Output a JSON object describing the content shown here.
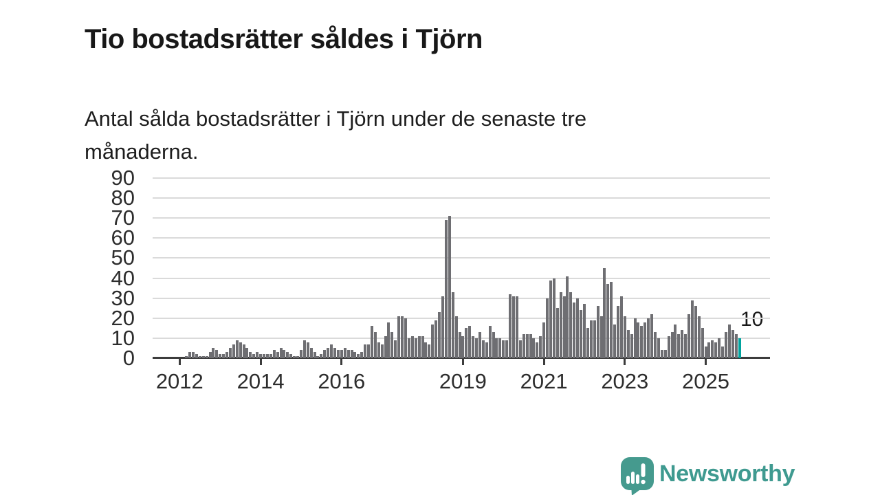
{
  "title": "Tio bostadsrätter såldes i Tjörn",
  "subtitle": "Antal sålda bostadsrätter i Tjörn under de senaste tre månaderna.",
  "chart_data": {
    "type": "bar",
    "title": "Tio bostadsrätter såldes i Tjörn",
    "subtitle": "Antal sålda bostadsrätter i Tjörn under de senaste tre månaderna.",
    "xlabel": "",
    "ylabel": "",
    "x_unit": "month",
    "x_start": "2011-06",
    "ylim": [
      0,
      90
    ],
    "grid": true,
    "yticks": [
      0,
      10,
      20,
      30,
      40,
      50,
      60,
      70,
      80,
      90
    ],
    "xticks": [
      {
        "label": "2012",
        "month_index": 7
      },
      {
        "label": "2014",
        "month_index": 31
      },
      {
        "label": "2016",
        "month_index": 55
      },
      {
        "label": "2019",
        "month_index": 91
      },
      {
        "label": "2021",
        "month_index": 115
      },
      {
        "label": "2023",
        "month_index": 139
      },
      {
        "label": "2025",
        "month_index": 163
      }
    ],
    "values": [
      0,
      0,
      0,
      0,
      0,
      0,
      0,
      0,
      0,
      1,
      3,
      3,
      2,
      1,
      1,
      1,
      3,
      5,
      4,
      2,
      2,
      3,
      5,
      7,
      9,
      8,
      7,
      5,
      3,
      2,
      3,
      2,
      2,
      2,
      2,
      4,
      3,
      5,
      4,
      3,
      2,
      1,
      1,
      4,
      9,
      8,
      5,
      3,
      1,
      2,
      4,
      5,
      7,
      5,
      4,
      4,
      5,
      4,
      4,
      3,
      2,
      3,
      7,
      7,
      16,
      13,
      8,
      7,
      11,
      18,
      13,
      9,
      21,
      21,
      20,
      10,
      11,
      10,
      11,
      11,
      8,
      7,
      17,
      19,
      23,
      31,
      69,
      71,
      33,
      21,
      13,
      11,
      15,
      16,
      11,
      10,
      13,
      9,
      8,
      16,
      13,
      10,
      10,
      9,
      9,
      32,
      31,
      31,
      9,
      12,
      12,
      12,
      10,
      8,
      11,
      18,
      30,
      39,
      40,
      25,
      33,
      31,
      41,
      33,
      28,
      30,
      24,
      27,
      15,
      19,
      19,
      26,
      21,
      45,
      37,
      38,
      17,
      26,
      31,
      21,
      14,
      12,
      20,
      18,
      16,
      18,
      20,
      22,
      13,
      10,
      4,
      4,
      11,
      13,
      17,
      12,
      14,
      12,
      22,
      29,
      26,
      21,
      15,
      6,
      8,
      9,
      8,
      10,
      6,
      13,
      17,
      14,
      12,
      10
    ],
    "highlight": {
      "index": 173,
      "value": 10,
      "label": "10"
    },
    "bar_color": "#6e6e72",
    "highlight_color": "#00a39e"
  },
  "annotation": {
    "latest_value_label": "10"
  },
  "footer": {
    "brand": "Newsworthy"
  },
  "colors": {
    "bar": "#6e6e72",
    "highlight": "#00a39e",
    "grid": "#dadada",
    "axis": "#3c3c3c",
    "text": "#181818",
    "brand": "#3f9a90"
  }
}
